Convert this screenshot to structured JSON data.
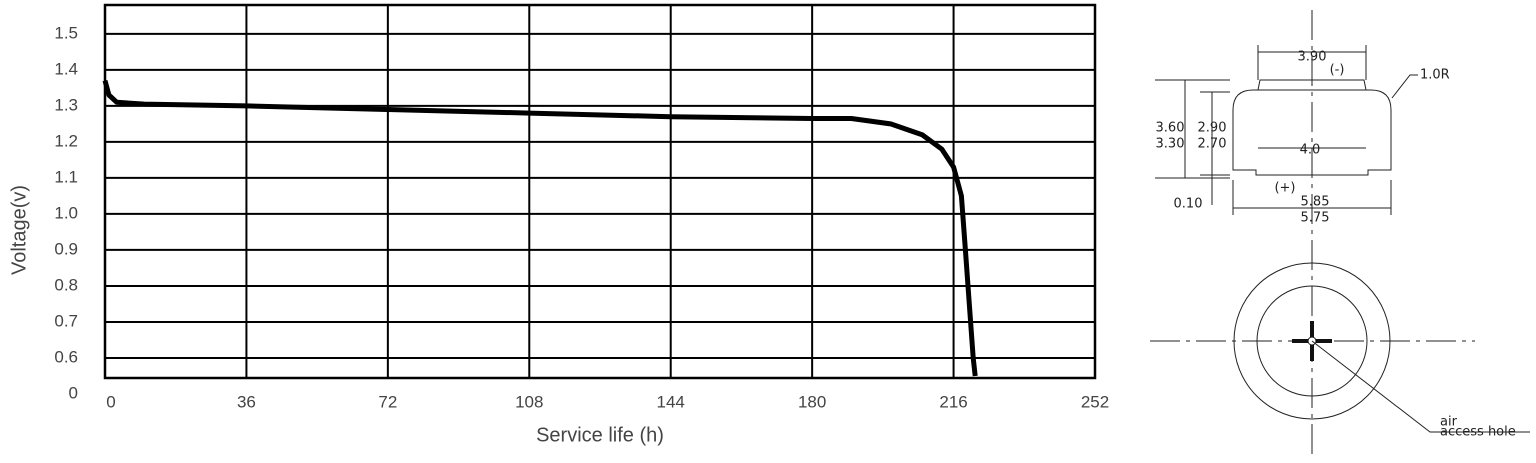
{
  "chart_data": {
    "type": "line",
    "x_label": "Service life (h)",
    "y_label": "Voltage(v)",
    "x": [
      0,
      1,
      3,
      10,
      36,
      72,
      108,
      144,
      180,
      190,
      200,
      208,
      213,
      216,
      218,
      219,
      220,
      221,
      221.5
    ],
    "values": [
      1.37,
      1.33,
      1.31,
      1.305,
      1.3,
      1.29,
      1.28,
      1.27,
      1.265,
      1.265,
      1.25,
      1.22,
      1.18,
      1.13,
      1.05,
      0.9,
      0.75,
      0.6,
      0.55
    ],
    "color": "#000000",
    "xlim": [
      0,
      252
    ],
    "xticks": [
      0,
      36,
      72,
      108,
      144,
      180,
      216,
      252
    ],
    "ylim": [
      0,
      1.58
    ],
    "y_axis_break": [
      0,
      0.5
    ],
    "yticks": [
      0,
      0.6,
      0.7,
      0.8,
      0.9,
      {
        "value": 1,
        "label": "1.0"
      },
      1.1,
      1.2,
      1.3,
      1.4,
      1.5
    ],
    "grid": true
  },
  "diagram": {
    "labels": {
      "top_width": "3.90",
      "negative": "(-)",
      "radius": "1.0R",
      "height_max": "3.60",
      "height_min": "3.30",
      "body_max": "2.90",
      "body_min": "2.70",
      "inner_width": "4.0",
      "positive": "(+)",
      "step": "0.10",
      "dia_max": "5.85",
      "dia_min": "5.75",
      "hole_1": "air",
      "hole_2": "access hole"
    }
  }
}
